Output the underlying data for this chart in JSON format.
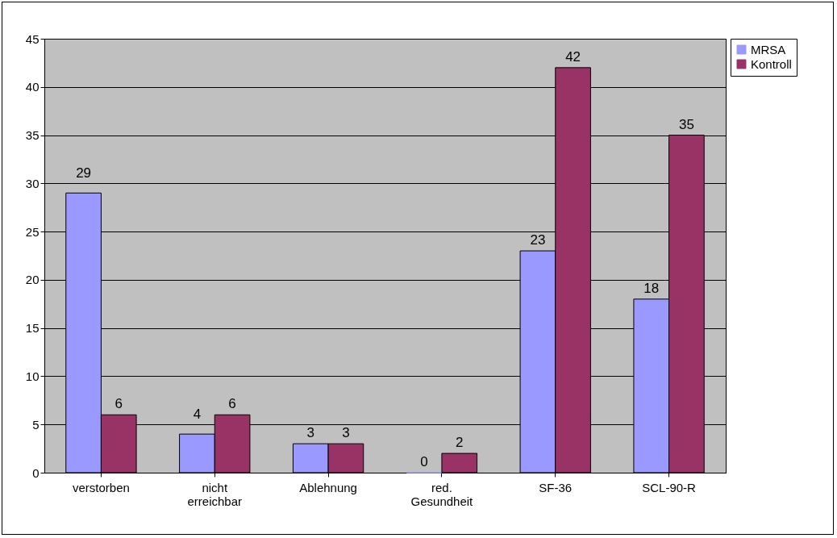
{
  "chart_data": {
    "type": "bar",
    "categories": [
      "verstorben",
      "nicht erreichbar",
      "Ablehnung",
      "red. Gesundheit",
      "SF-36",
      "SCL-90-R"
    ],
    "series": [
      {
        "name": "MRSA",
        "color": "#9999ff",
        "values": [
          29,
          4,
          3,
          0,
          23,
          18
        ]
      },
      {
        "name": "Kontroll",
        "color": "#993366",
        "values": [
          6,
          6,
          3,
          2,
          42,
          35
        ]
      }
    ],
    "ylim": [
      0,
      45
    ],
    "yticks": [
      0,
      5,
      10,
      15,
      20,
      25,
      30,
      35,
      40,
      45
    ],
    "grid": "y",
    "legend": "right",
    "data_labels": true
  }
}
